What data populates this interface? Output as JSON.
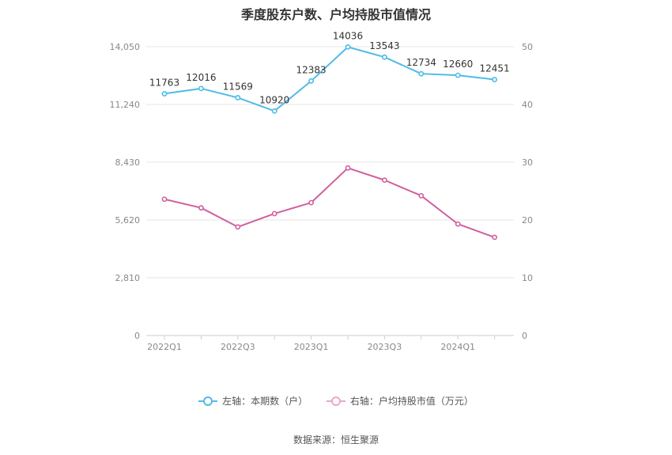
{
  "title": "季度股东户数、户均持股市值情况",
  "source": "数据来源：恒生聚源",
  "colors": {
    "left_series": "#4fbbe8",
    "right_series": "#d0609e",
    "grid": "#e6e6e6",
    "axis_text": "#888888"
  },
  "chart_data": {
    "type": "line",
    "x": [
      "2022Q1",
      "2022Q2",
      "2022Q3",
      "2022Q4",
      "2023Q1",
      "2023Q2",
      "2023Q3",
      "2023Q4",
      "2024Q1",
      "2024Q2"
    ],
    "x_tick_labels": [
      "2022Q1",
      "",
      "2022Q3",
      "",
      "2023Q1",
      "",
      "2023Q3",
      "",
      "2024Q1",
      ""
    ],
    "left_axis": {
      "ticks": [
        0,
        2810,
        5620,
        8430,
        11240,
        14050
      ],
      "tick_labels": [
        "0",
        "2,810",
        "5,620",
        "8,430",
        "11,240",
        "14,050"
      ],
      "ylim": [
        0,
        14050
      ]
    },
    "right_axis": {
      "ticks": [
        0,
        10,
        20,
        30,
        40,
        50
      ],
      "tick_labels": [
        "0",
        "10",
        "20",
        "30",
        "40",
        "50"
      ],
      "ylim": [
        0,
        50
      ]
    },
    "series": [
      {
        "name": "左轴：本期数（户）",
        "axis": "left",
        "values": [
          11763,
          12016,
          11569,
          10920,
          12383,
          14036,
          13543,
          12734,
          12660,
          12451
        ],
        "labels": [
          "11763",
          "12016",
          "11569",
          "10920",
          "12383",
          "14036",
          "13543",
          "12734",
          "12660",
          "12451"
        ]
      },
      {
        "name": "右轴：户均持股市值（万元）",
        "axis": "right",
        "values": [
          23.6,
          22.1,
          18.8,
          21.1,
          23.0,
          29.0,
          26.9,
          24.2,
          19.3,
          17.0
        ]
      }
    ],
    "grid": true,
    "legend_position": "bottom"
  }
}
